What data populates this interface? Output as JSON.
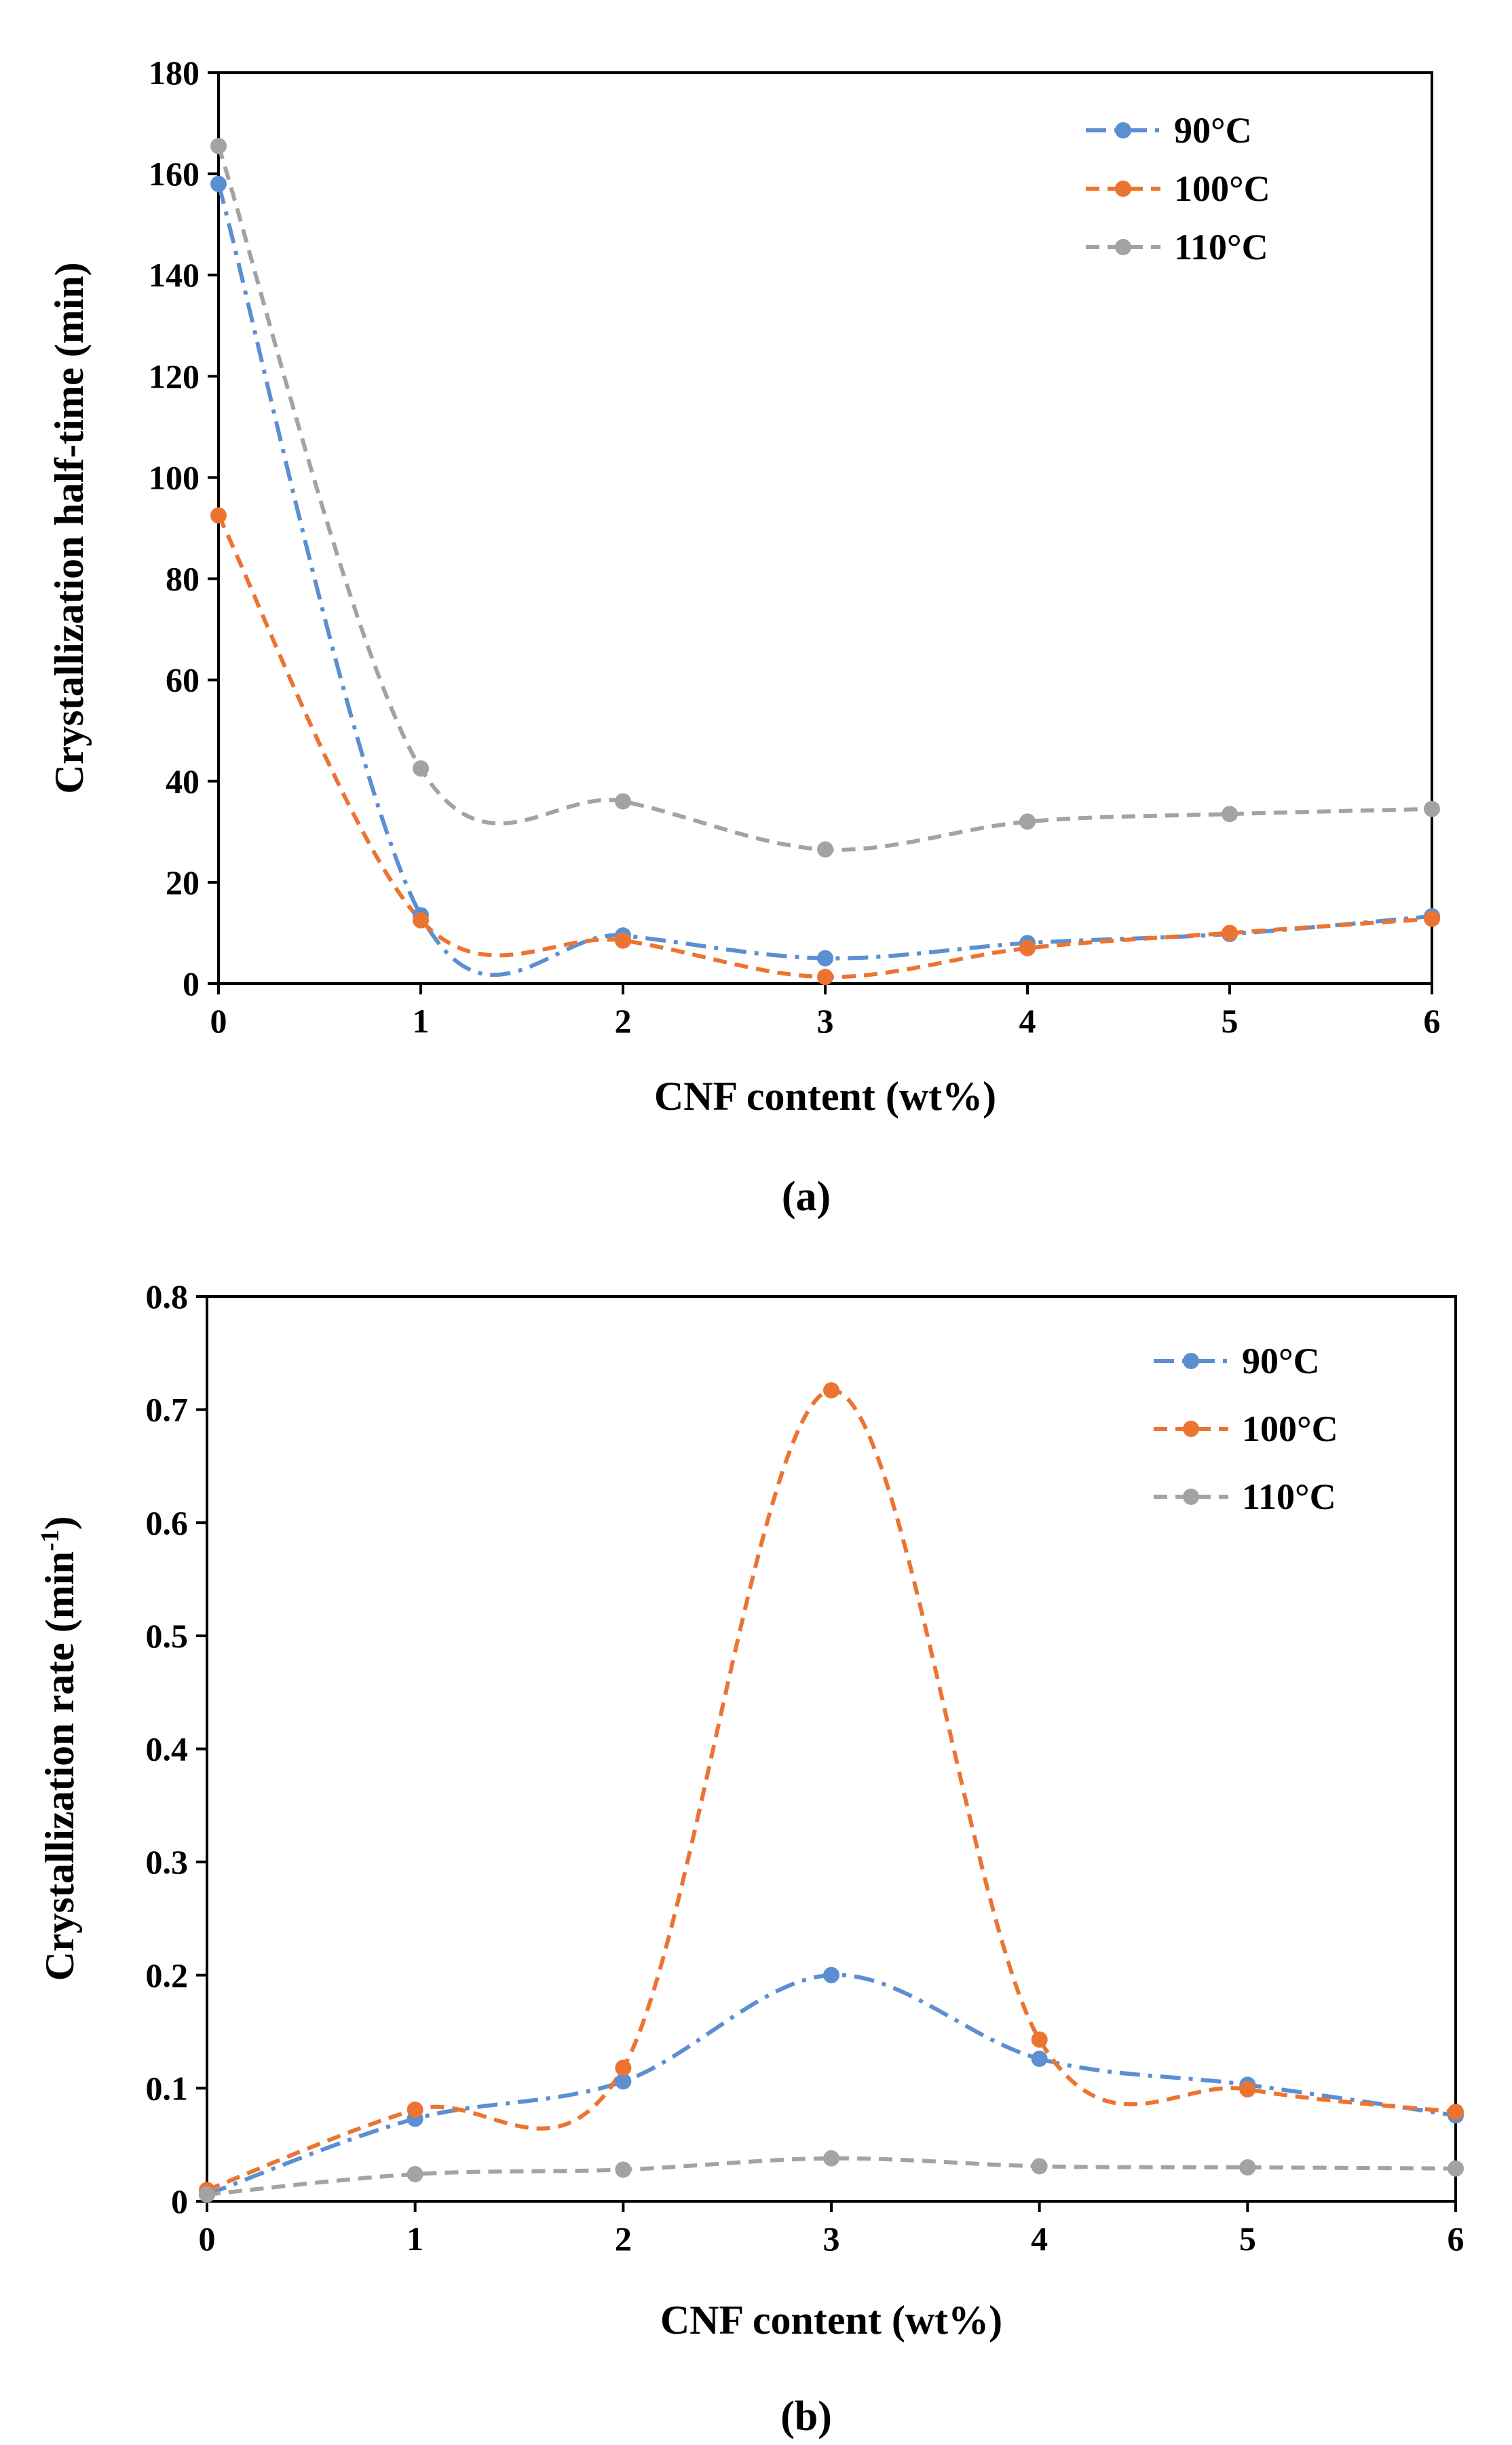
{
  "chart_data": [
    {
      "panel": "(a)",
      "type": "line",
      "xlabel": "CNF content (wt%)",
      "ylabel": "Crystallization half-time (min)",
      "xlim": [
        0,
        6
      ],
      "ylim": [
        0,
        180
      ],
      "xticks": [
        "0",
        "1",
        "2",
        "3",
        "4",
        "5",
        "6"
      ],
      "yticks": [
        "0",
        "20",
        "40",
        "60",
        "80",
        "100",
        "120",
        "140",
        "160",
        "180"
      ],
      "legend": "top-right",
      "grid": false,
      "x": [
        0,
        1,
        2,
        3,
        4,
        5,
        6
      ],
      "series": [
        {
          "name": "90°C",
          "values": [
            158,
            13.5,
            9.5,
            5,
            8,
            9.8,
            13.3
          ],
          "color": "#5b8fd2",
          "dash": "dashdot"
        },
        {
          "name": "100°C",
          "values": [
            92.5,
            12.5,
            8.5,
            1.3,
            7,
            10,
            12.8
          ],
          "color": "#ec7432",
          "dash": "dashed"
        },
        {
          "name": "110°C",
          "values": [
            165.5,
            42.5,
            36,
            26.5,
            32,
            33.5,
            34.5
          ],
          "color": "#a3a3a3",
          "dash": "dashed"
        }
      ]
    },
    {
      "panel": "(b)",
      "type": "line",
      "xlabel": "CNF content (wt%)",
      "ylabel": "Crystallization rate (min",
      "ylabel_sup": "-1",
      "ylabel_end": ")",
      "xlim": [
        0,
        6
      ],
      "ylim": [
        0,
        0.8
      ],
      "xticks": [
        "0",
        "1",
        "2",
        "3",
        "4",
        "5",
        "6"
      ],
      "yticks": [
        "0",
        "0.1",
        "0.2",
        "0.3",
        "0.4",
        "0.5",
        "0.6",
        "0.7",
        "0.8"
      ],
      "legend": "top-right",
      "grid": false,
      "x": [
        0,
        1,
        2,
        3,
        4,
        5,
        6
      ],
      "series": [
        {
          "name": "90°C",
          "values": [
            0.006,
            0.073,
            0.106,
            0.2,
            0.126,
            0.103,
            0.076
          ],
          "color": "#5b8fd2",
          "dash": "dashdot"
        },
        {
          "name": "100°C",
          "values": [
            0.01,
            0.081,
            0.118,
            0.717,
            0.143,
            0.099,
            0.079
          ],
          "color": "#ec7432",
          "dash": "dashed"
        },
        {
          "name": "110°C",
          "values": [
            0.006,
            0.024,
            0.028,
            0.038,
            0.031,
            0.03,
            0.029
          ],
          "color": "#a3a3a3",
          "dash": "dashed"
        }
      ]
    }
  ],
  "captions": [
    "(a)",
    "(b)"
  ]
}
